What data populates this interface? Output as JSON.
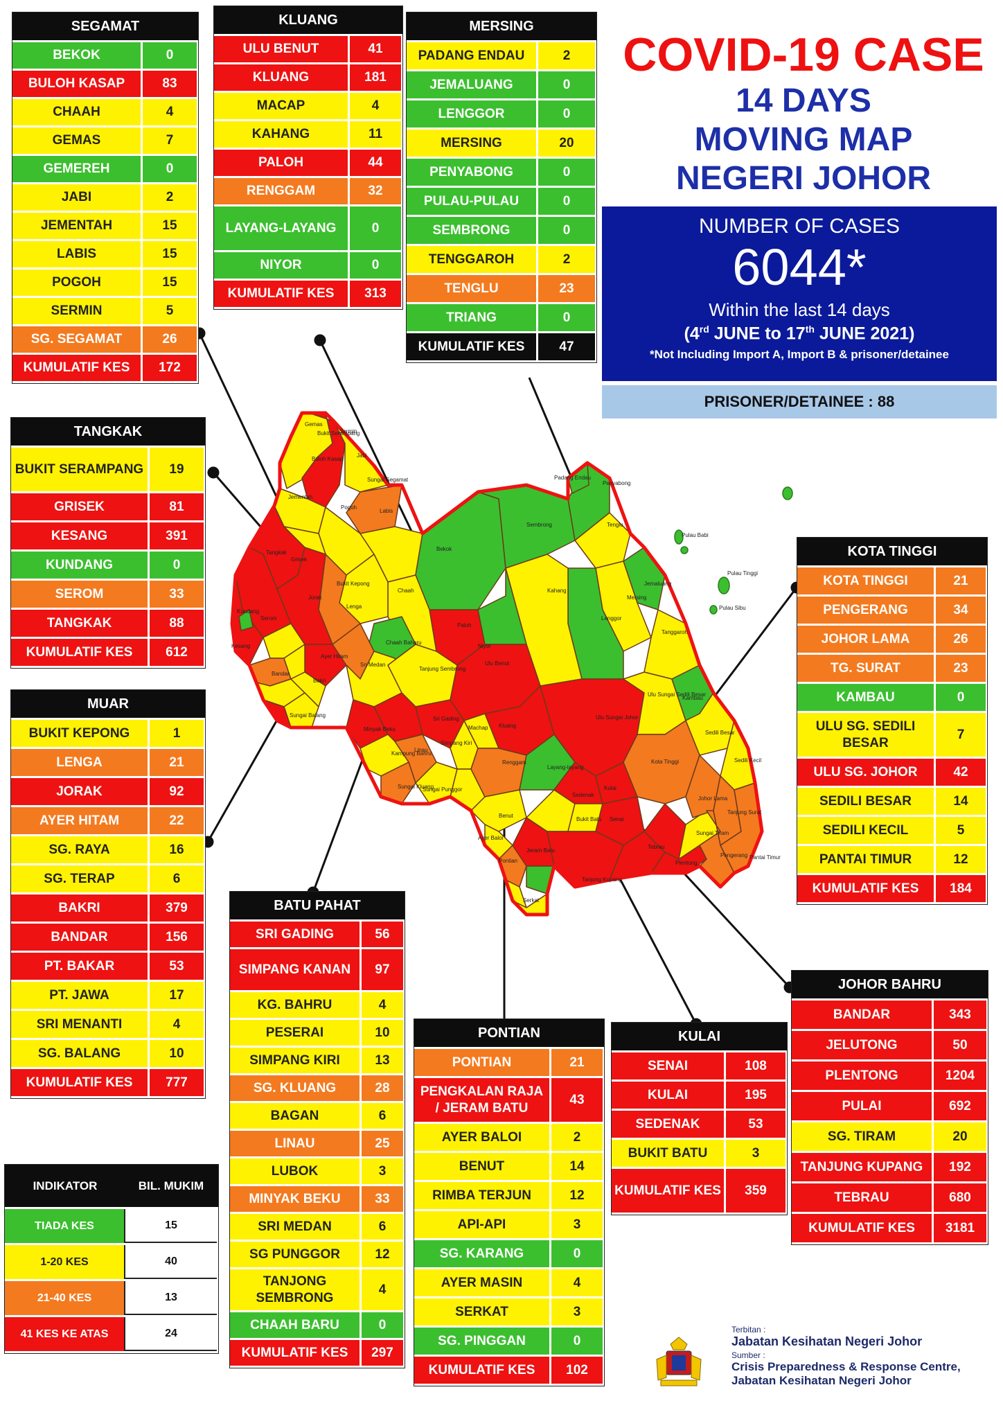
{
  "title": {
    "line1": "COVID-19 CASE",
    "line2": "14 DAYS",
    "line3": "MOVING MAP",
    "line4": "NEGERI JOHOR"
  },
  "cases": {
    "label": "NUMBER OF CASES",
    "total": "6044*",
    "within": "Within the last 14 days",
    "period_day1": "4",
    "period_sup1": "rd",
    "period_mid": " JUNE to 17",
    "period_sup2": "th",
    "period_end": " JUNE 2021)",
    "period_open": "(",
    "note": "*Not Including Import A, Import B & prisoner/detainee"
  },
  "prisoner": "PRISONER/DETAINEE : 88",
  "colors": {
    "green": "#3bbf2f",
    "yellow": "#fff200",
    "orange": "#f47a1f",
    "red": "#ee1212",
    "dark": "#0d0d0d",
    "navy": "#0a1a9a"
  },
  "districts": {
    "segamat": {
      "name": "SEGAMAT",
      "rows": [
        {
          "name": "BEKOK",
          "count": "0",
          "level": "green"
        },
        {
          "name": "BULOH KASAP",
          "count": "83",
          "level": "red"
        },
        {
          "name": "CHAAH",
          "count": "4",
          "level": "yellow"
        },
        {
          "name": "GEMAS",
          "count": "7",
          "level": "yellow"
        },
        {
          "name": "GEMEREH",
          "count": "0",
          "level": "green"
        },
        {
          "name": "JABI",
          "count": "2",
          "level": "yellow"
        },
        {
          "name": "JEMENTAH",
          "count": "15",
          "level": "yellow"
        },
        {
          "name": "LABIS",
          "count": "15",
          "level": "yellow"
        },
        {
          "name": "POGOH",
          "count": "15",
          "level": "yellow"
        },
        {
          "name": "SERMIN",
          "count": "5",
          "level": "yellow"
        },
        {
          "name": "SG. SEGAMAT",
          "count": "26",
          "level": "orange"
        },
        {
          "name": "KUMULATIF KES",
          "count": "172",
          "level": "total"
        }
      ]
    },
    "kluang": {
      "name": "KLUANG",
      "rows": [
        {
          "name": "ULU BENUT",
          "count": "41",
          "level": "red"
        },
        {
          "name": "KLUANG",
          "count": "181",
          "level": "red"
        },
        {
          "name": "MACAP",
          "count": "4",
          "level": "yellow"
        },
        {
          "name": "KAHANG",
          "count": "11",
          "level": "yellow"
        },
        {
          "name": "PALOH",
          "count": "44",
          "level": "red"
        },
        {
          "name": "RENGGAM",
          "count": "32",
          "level": "orange"
        },
        {
          "name": "LAYANG-LAYANG",
          "count": "0",
          "level": "green",
          "tall": true
        },
        {
          "name": "NIYOR",
          "count": "0",
          "level": "green"
        },
        {
          "name": "KUMULATIF KES",
          "count": "313",
          "level": "total"
        }
      ]
    },
    "mersing": {
      "name": "MERSING",
      "rows": [
        {
          "name": "PADANG ENDAU",
          "count": "2",
          "level": "yellow"
        },
        {
          "name": "JEMALUANG",
          "count": "0",
          "level": "green"
        },
        {
          "name": "LENGGOR",
          "count": "0",
          "level": "green"
        },
        {
          "name": "MERSING",
          "count": "20",
          "level": "yellow"
        },
        {
          "name": "PENYABONG",
          "count": "0",
          "level": "green"
        },
        {
          "name": "PULAU-PULAU",
          "count": "0",
          "level": "green"
        },
        {
          "name": "SEMBRONG",
          "count": "0",
          "level": "green"
        },
        {
          "name": "TENGGAROH",
          "count": "2",
          "level": "yellow"
        },
        {
          "name": "TENGLU",
          "count": "23",
          "level": "orange"
        },
        {
          "name": "TRIANG",
          "count": "0",
          "level": "green"
        },
        {
          "name": "KUMULATIF KES",
          "count": "47",
          "level": "dark"
        }
      ]
    },
    "tangkak": {
      "name": "TANGKAK",
      "rows": [
        {
          "name": "BUKIT SERAMPANG",
          "count": "19",
          "level": "yellow",
          "tall": true
        },
        {
          "name": "GRISEK",
          "count": "81",
          "level": "red"
        },
        {
          "name": "KESANG",
          "count": "391",
          "level": "red"
        },
        {
          "name": "KUNDANG",
          "count": "0",
          "level": "green"
        },
        {
          "name": "SEROM",
          "count": "33",
          "level": "orange"
        },
        {
          "name": "TANGKAK",
          "count": "88",
          "level": "red"
        },
        {
          "name": "KUMULATIF KES",
          "count": "612",
          "level": "total"
        }
      ]
    },
    "muar": {
      "name": "MUAR",
      "rows": [
        {
          "name": "BUKIT KEPONG",
          "count": "1",
          "level": "yellow"
        },
        {
          "name": "LENGA",
          "count": "21",
          "level": "orange"
        },
        {
          "name": "JORAK",
          "count": "92",
          "level": "red"
        },
        {
          "name": "AYER HITAM",
          "count": "22",
          "level": "orange"
        },
        {
          "name": "SG. RAYA",
          "count": "16",
          "level": "yellow"
        },
        {
          "name": "SG. TERAP",
          "count": "6",
          "level": "yellow"
        },
        {
          "name": "BAKRI",
          "count": "379",
          "level": "red"
        },
        {
          "name": "BANDAR",
          "count": "156",
          "level": "red"
        },
        {
          "name": "PT. BAKAR",
          "count": "53",
          "level": "red"
        },
        {
          "name": "PT. JAWA",
          "count": "17",
          "level": "yellow"
        },
        {
          "name": "SRI MENANTI",
          "count": "4",
          "level": "yellow"
        },
        {
          "name": "SG. BALANG",
          "count": "10",
          "level": "yellow"
        },
        {
          "name": "KUMULATIF KES",
          "count": "777",
          "level": "total"
        }
      ]
    },
    "kota_tinggi": {
      "name": "KOTA TINGGI",
      "rows": [
        {
          "name": "KOTA TINGGI",
          "count": "21",
          "level": "orange"
        },
        {
          "name": "PENGERANG",
          "count": "34",
          "level": "orange"
        },
        {
          "name": "JOHOR LAMA",
          "count": "26",
          "level": "orange"
        },
        {
          "name": "TG. SURAT",
          "count": "23",
          "level": "orange"
        },
        {
          "name": "KAMBAU",
          "count": "0",
          "level": "green"
        },
        {
          "name": "ULU SG. SEDILI BESAR",
          "count": "7",
          "level": "yellow",
          "tall": true
        },
        {
          "name": "ULU  SG. JOHOR",
          "count": "42",
          "level": "red"
        },
        {
          "name": "SEDILI BESAR",
          "count": "14",
          "level": "yellow"
        },
        {
          "name": "SEDILI KECIL",
          "count": "5",
          "level": "yellow"
        },
        {
          "name": "PANTAI TIMUR",
          "count": "12",
          "level": "yellow"
        },
        {
          "name": "KUMULATIF KES",
          "count": "184",
          "level": "total"
        }
      ]
    },
    "batu_pahat": {
      "name": "BATU PAHAT",
      "rows": [
        {
          "name": "SRI GADING",
          "count": "56",
          "level": "red"
        },
        {
          "name": "SIMPANG KANAN",
          "count": "97",
          "level": "red",
          "tall": true
        },
        {
          "name": "KG. BAHRU",
          "count": "4",
          "level": "yellow"
        },
        {
          "name": "PESERAI",
          "count": "10",
          "level": "yellow"
        },
        {
          "name": "SIMPANG KIRI",
          "count": "13",
          "level": "yellow"
        },
        {
          "name": "SG. KLUANG",
          "count": "28",
          "level": "orange"
        },
        {
          "name": "BAGAN",
          "count": "6",
          "level": "yellow"
        },
        {
          "name": "LINAU",
          "count": "25",
          "level": "orange"
        },
        {
          "name": "LUBOK",
          "count": "3",
          "level": "yellow"
        },
        {
          "name": "MINYAK BEKU",
          "count": "33",
          "level": "orange"
        },
        {
          "name": "SRI MEDAN",
          "count": "6",
          "level": "yellow"
        },
        {
          "name": "SG PUNGGOR",
          "count": "12",
          "level": "yellow"
        },
        {
          "name": "TANJONG SEMBRONG",
          "count": "4",
          "level": "yellow",
          "tall": true
        },
        {
          "name": "CHAAH BARU",
          "count": "0",
          "level": "green"
        },
        {
          "name": "KUMULATIF KES",
          "count": "297",
          "level": "total"
        }
      ]
    },
    "pontian": {
      "name": "PONTIAN",
      "rows": [
        {
          "name": "PONTIAN",
          "count": "21",
          "level": "orange"
        },
        {
          "name": "PENGKALAN RAJA / JERAM BATU",
          "count": "43",
          "level": "red",
          "tall": true
        },
        {
          "name": "AYER BALOI",
          "count": "2",
          "level": "yellow"
        },
        {
          "name": "BENUT",
          "count": "14",
          "level": "yellow"
        },
        {
          "name": "RIMBA TERJUN",
          "count": "12",
          "level": "yellow"
        },
        {
          "name": "API-API",
          "count": "3",
          "level": "yellow"
        },
        {
          "name": "SG. KARANG",
          "count": "0",
          "level": "green"
        },
        {
          "name": "AYER MASIN",
          "count": "4",
          "level": "yellow"
        },
        {
          "name": "SERKAT",
          "count": "3",
          "level": "yellow"
        },
        {
          "name": "SG. PINGGAN",
          "count": "0",
          "level": "green"
        },
        {
          "name": "KUMULATIF KES",
          "count": "102",
          "level": "total"
        }
      ]
    },
    "kulai": {
      "name": "KULAI",
      "rows": [
        {
          "name": "SENAI",
          "count": "108",
          "level": "red"
        },
        {
          "name": "KULAI",
          "count": "195",
          "level": "red"
        },
        {
          "name": "SEDENAK",
          "count": "53",
          "level": "red"
        },
        {
          "name": "BUKIT BATU",
          "count": "3",
          "level": "yellow"
        },
        {
          "name": "KUMULATIF KES",
          "count": "359",
          "level": "total",
          "tall": true
        }
      ]
    },
    "johor_bahru": {
      "name": "JOHOR BAHRU",
      "rows": [
        {
          "name": "BANDAR",
          "count": "343",
          "level": "red"
        },
        {
          "name": "JELUTONG",
          "count": "50",
          "level": "red"
        },
        {
          "name": "PLENTONG",
          "count": "1204",
          "level": "red"
        },
        {
          "name": "PULAI",
          "count": "692",
          "level": "red"
        },
        {
          "name": "SG. TIRAM",
          "count": "20",
          "level": "yellow"
        },
        {
          "name": "TANJUNG KUPANG",
          "count": "192",
          "level": "red"
        },
        {
          "name": "TEBRAU",
          "count": "680",
          "level": "red"
        },
        {
          "name": "KUMULATIF KES",
          "count": "3181",
          "level": "total"
        }
      ]
    }
  },
  "legend": {
    "col1": "INDIKATOR",
    "col2": "BIL. MUKIM",
    "rows": [
      {
        "label": "TIADA KES",
        "count": "15",
        "level": "green"
      },
      {
        "label": "1-20 KES",
        "count": "40",
        "level": "yellow"
      },
      {
        "label": "21-40 KES",
        "count": "13",
        "level": "orange"
      },
      {
        "label": "41 KES KE ATAS",
        "count": "24",
        "level": "red"
      }
    ]
  },
  "map_labels": [
    "Gemas",
    "Bukit Serampang",
    "Sermin",
    "Jabi",
    "Buloh Kasap",
    "Sungai Segamat",
    "Jementah",
    "Pogoh",
    "Labis",
    "Bekok",
    "Sembrong",
    "Padang Endau",
    "Penyabong",
    "Tenglu",
    "Pulau Babi",
    "Pulau Tinggi",
    "Pulau Sibu",
    "Jemaluang",
    "Mersing",
    "Lenggor",
    "Kahang",
    "Tanggaroh",
    "Paloh",
    "Niyor",
    "Chaah",
    "Bukit Kepong",
    "Lenga",
    "Tangkak",
    "Grisek",
    "Kundang",
    "Serom",
    "Kesang",
    "Jorak",
    "Chaah Baharu",
    "Ulu Benut",
    "Sri Medan",
    "Tanjung Sembrong",
    "Ayer Hitam",
    "Kluang",
    "Renggam",
    "Machap",
    "Layang-layang",
    "Kambau",
    "Ulu Sungai Sedili Besar",
    "Sedili Besar",
    "Ulu Sungai Johor",
    "Kota Tinggi",
    "Sedili Kecil",
    "Johor Lama",
    "Tanjung Surat",
    "Pengerang",
    "Pantai Timur",
    "Sedenak",
    "Kulai",
    "Senai",
    "Tebrau",
    "Plentong",
    "Sungai Tiram",
    "Tanjung Kupang",
    "Ayer Baloi",
    "Benut",
    "Pontian",
    "Serkat",
    "Bakri",
    "Bandar",
    "Sungai Balang",
    "Minyak Beku",
    "Kampung Bahru",
    "Linau",
    "Simpang Kiri",
    "Sungai Punggor",
    "Sungai Kluang",
    "Bukit Batu",
    "Sri Gading",
    "Jeram Batu"
  ],
  "footer": {
    "terbitan_label": "Terbitan :",
    "terbitan": "Jabatan Kesihatan Negeri Johor",
    "sumber_label": "Sumber :",
    "sumber1": "Crisis Preparedness & Response Centre,",
    "sumber2": "Jabatan Kesihatan Negeri Johor"
  }
}
